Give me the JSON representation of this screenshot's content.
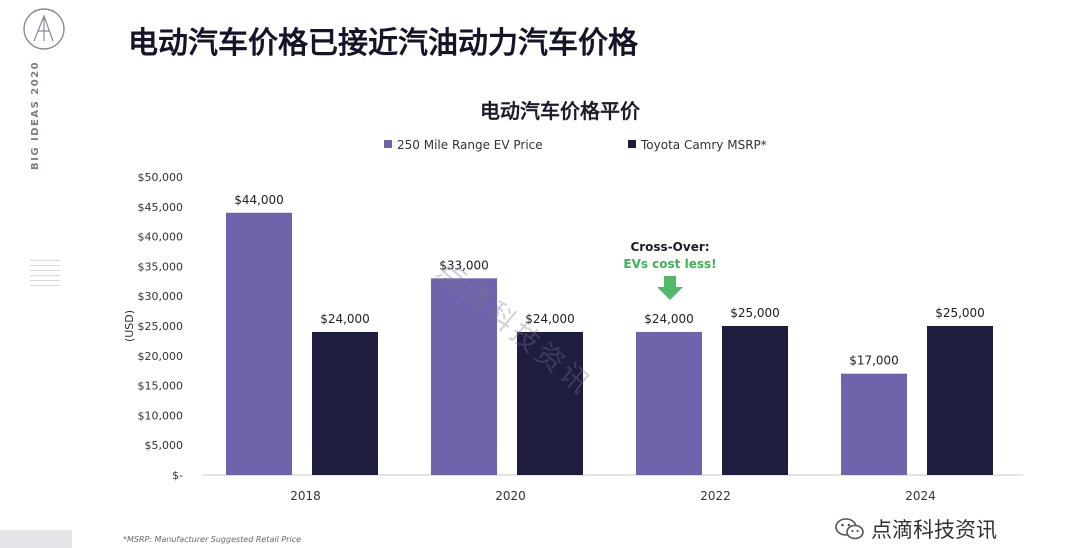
{
  "slide": {
    "title": "电动汽车价格已接近汽油动力汽车价格",
    "side_label": "BIG IDEAS 2020",
    "footnote": "*MSRP: Manufacturer Suggested Retail Price",
    "watermark": "点滴科技资讯",
    "brand": "点滴科技资讯"
  },
  "colors": {
    "ev": "#6f64ab",
    "camry": "#1e1c3f",
    "arrow": "#52b86a",
    "annotation_green": "#3cb454"
  },
  "chart_data": {
    "type": "bar",
    "title": "电动汽车价格平价",
    "ylabel": "(USD)",
    "xlabel": "",
    "categories": [
      "2018",
      "2020",
      "2022",
      "2024"
    ],
    "series": [
      {
        "name": "250 Mile Range EV Price",
        "values": [
          44000,
          33000,
          24000,
          17000
        ],
        "labels": [
          "$44,000",
          "$33,000",
          "$24,000",
          "$17,000"
        ]
      },
      {
        "name": "Toyota Camry MSRP*",
        "values": [
          24000,
          24000,
          25000,
          25000
        ],
        "labels": [
          "$24,000",
          "$24,000",
          "$25,000",
          "$25,000"
        ]
      }
    ],
    "ylim": [
      0,
      50000
    ],
    "yticks": [
      0,
      5000,
      10000,
      15000,
      20000,
      25000,
      30000,
      35000,
      40000,
      45000,
      50000
    ],
    "ytick_labels": [
      "$-",
      "$5,000",
      "$10,000",
      "$15,000",
      "$20,000",
      "$25,000",
      "$30,000",
      "$35,000",
      "$40,000",
      "$45,000",
      "$50,000"
    ],
    "legend_position": "top",
    "annotation": {
      "category": "2022",
      "line1": "Cross-Over:",
      "line2": "EVs cost less!"
    }
  }
}
